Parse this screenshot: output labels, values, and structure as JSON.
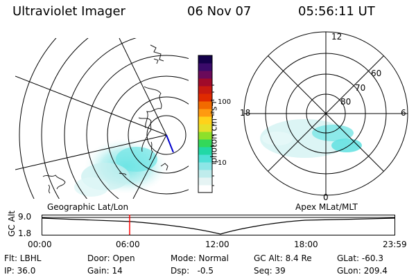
{
  "header": {
    "title": "Ultraviolet Imager",
    "date": "06 Nov 07",
    "time": "05:56:11 UT"
  },
  "geo_map": {
    "coastline_color": "#1a1a1a",
    "aurora_color": "#7fe8e8"
  },
  "colorbar": {
    "title": "photon cm⁻²s⁻¹",
    "ticks": [
      "100",
      "10"
    ],
    "colors": [
      "#ffffff",
      "#e6f4f4",
      "#bfecec",
      "#8de6e6",
      "#4fe0d6",
      "#22d8a6",
      "#33d85a",
      "#8ee02a",
      "#e6e02a",
      "#ffd21a",
      "#ff9a10",
      "#f26a00",
      "#e02a00",
      "#c81a10",
      "#a00a2a",
      "#6a0a5a",
      "#3a0a6a",
      "#14004a"
    ]
  },
  "polar_plot": {
    "lat_labels": [
      "80",
      "70",
      "60"
    ],
    "mlt_labels": {
      "top": "12",
      "left": "18",
      "right": "6",
      "bottom": "0"
    },
    "aurora_color": "#7fe8e8"
  },
  "timeline": {
    "ylabel": "GC Alt",
    "yticks": [
      "9.0",
      "1.8"
    ],
    "left_title": "Geographic Lat/Lon",
    "right_title": "Apex MLat/MLT",
    "xticks": [
      "00:00",
      "06:00",
      "12:00",
      "18:00",
      "23:59"
    ],
    "marker_color": "#ff0000"
  },
  "info": {
    "flt": "Flt: LBHL",
    "ip": "IP: 36.0",
    "door": "Door: Open",
    "gain": "Gain: 14",
    "mode": "Mode: Normal",
    "dsp": "Dsp:   -0.5",
    "gcalt": "GC Alt: 8.4 Re",
    "seq": "Seq: 39",
    "glat": "GLat: -60.3",
    "glon": "GLon: 209.4"
  }
}
